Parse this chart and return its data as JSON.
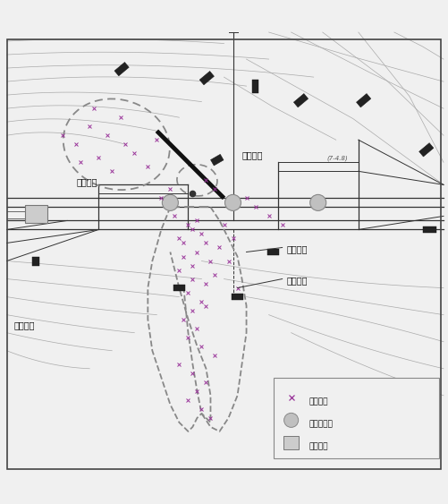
{
  "background_color": "#f0f0f0",
  "fig_width": 5.01,
  "fig_height": 5.63,
  "dpi": 100,
  "labels": {
    "zhuru_zhuakong": "注液钻孔",
    "zhujian_houqi": "注浆后期",
    "houqi_sub": "(7-4.8)",
    "zhujian_zhongqi": "注浆中期",
    "zhujian_chuqi": "注浆初期",
    "qiangjing_liudai": "强径流带",
    "weizheng_shijian": "微震事件",
    "weizheng_jiboqi": "微震检波器",
    "caiji_fenzhan": "采集分站"
  },
  "geo_line_color": "#aaaaaa",
  "tunnel_color": "#333333",
  "fault_color": "#111111",
  "dashed_zone_color": "#888888",
  "marker_color": "#993399",
  "label_color": "#111111"
}
